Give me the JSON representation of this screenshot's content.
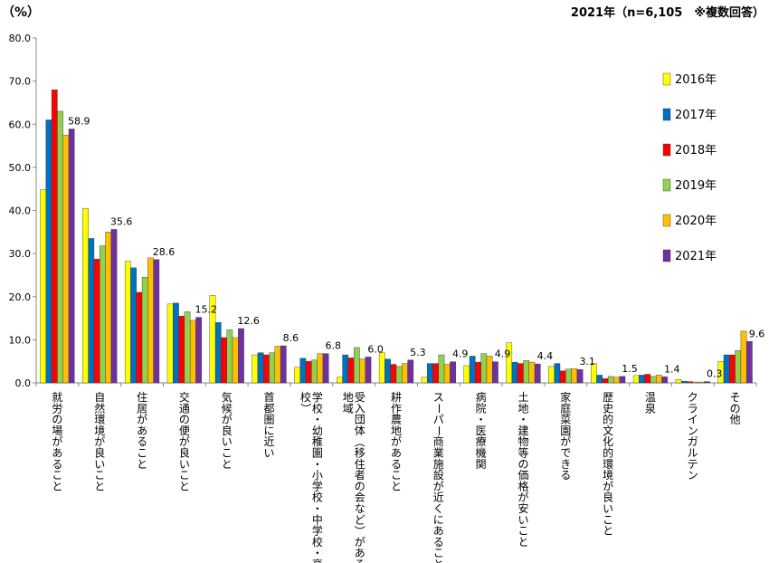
{
  "chart_data": {
    "type": "bar",
    "unit_label": "（%）",
    "header_note": "2021年（n=6,105　※複数回答）",
    "ylim": [
      0,
      80
    ],
    "yticks": [
      "0.0",
      "10.0",
      "20.0",
      "30.0",
      "40.0",
      "50.0",
      "60.0",
      "70.0",
      "80.0"
    ],
    "categories": [
      "就労の場があること",
      "自然環境が良いこと",
      "住居があること",
      "交通の便が良いこと",
      "気候が良いこと",
      "首都圏に近い",
      "学校・幼稚園・小学校・中学校・高校）",
      "受入団体（移住者の会など）がある地域",
      "耕作農地があること",
      "スーパー商業施設が近くにあること",
      "病院・医療機関",
      "土地・建物等の価格が安いこと",
      "家庭菜園ができる",
      "歴史的文化的環境が良いこと",
      "温泉",
      "クラインガルテン",
      "その他"
    ],
    "series": [
      {
        "name": "2016年",
        "color": "#ffff00",
        "values": [
          44.8,
          40.5,
          28.2,
          18.3,
          20.3,
          6.5,
          3.6,
          1.3,
          7.0,
          1.3,
          4.0,
          9.3,
          3.8,
          4.5,
          1.7,
          0.8,
          5.0
        ]
      },
      {
        "name": "2017年",
        "color": "#0070c0",
        "values": [
          61.0,
          33.5,
          26.7,
          18.5,
          14.0,
          7.0,
          5.7,
          6.5,
          5.5,
          4.5,
          6.2,
          4.8,
          4.5,
          1.8,
          1.8,
          0.4,
          6.5
        ]
      },
      {
        "name": "2018年",
        "color": "#ff0000",
        "values": [
          68.0,
          28.7,
          21.0,
          15.5,
          10.5,
          6.5,
          5.0,
          5.8,
          4.3,
          4.5,
          4.8,
          4.5,
          2.8,
          1.0,
          2.0,
          0.3,
          6.5
        ]
      },
      {
        "name": "2019年",
        "color": "#92d050",
        "values": [
          63.0,
          31.8,
          24.5,
          16.5,
          12.3,
          7.0,
          5.3,
          8.2,
          3.8,
          6.5,
          6.8,
          5.2,
          3.2,
          1.5,
          1.5,
          0.2,
          7.5
        ]
      },
      {
        "name": "2020年",
        "color": "#ffc000",
        "values": [
          57.5,
          35.0,
          29.0,
          14.5,
          10.5,
          8.5,
          6.8,
          5.5,
          4.5,
          4.3,
          6.2,
          4.8,
          3.3,
          1.3,
          1.8,
          0.2,
          12.0
        ]
      },
      {
        "name": "2021年",
        "color": "#7030a0",
        "values": [
          58.9,
          35.6,
          28.6,
          15.2,
          12.6,
          8.6,
          6.8,
          6.0,
          5.3,
          4.9,
          4.9,
          4.4,
          3.1,
          1.5,
          1.4,
          0.3,
          9.6
        ]
      }
    ],
    "data_labels": [
      "58.9",
      "35.6",
      "28.6",
      "15.2",
      "12.6",
      "8.6",
      "6.8",
      "6.0",
      "5.3",
      "4.9",
      "4.9",
      "4.4",
      "3.1",
      "1.5",
      "1.4",
      "0.3",
      "9.6"
    ],
    "legend_position": "right",
    "grid": false
  }
}
